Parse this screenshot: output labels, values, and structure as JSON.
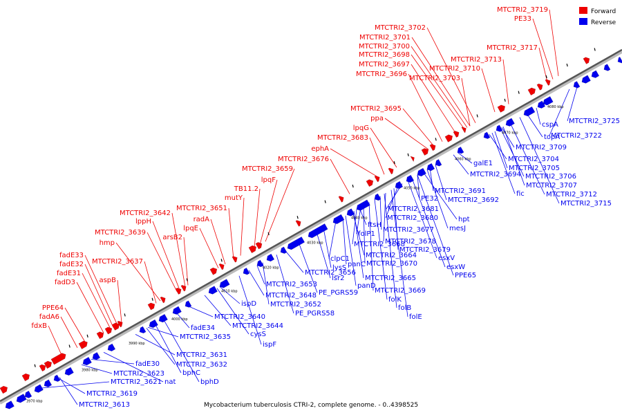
{
  "caption": "Mycobacterium tuberculosis CTRI-2, complete genome. - 0..4398525",
  "legend": [
    {
      "label": "Forward",
      "color": "#ee0000"
    },
    {
      "label": "Reverse",
      "color": "#0000ee"
    }
  ],
  "ticks": [
    "3970 kbp",
    "3980 kbp",
    "3990 kbp",
    "4000 kbp",
    "4010 kbp",
    "4020 kbp",
    "4030 kbp",
    "4040 kbp",
    "4050 kbp",
    "4060 kbp",
    "4070 kbp",
    "4080 kbp"
  ],
  "forward_labels": [
    "fdxB",
    "fadA6",
    "PPE64",
    "fadD3",
    "fadE31",
    "fadE32",
    "fadE33",
    "aspB",
    "MTCTRI2_3637",
    "hmp",
    "MTCTRI2_3639",
    "lppH",
    "MTCTRI2_3642",
    "arsB2",
    "lpqE",
    "radA",
    "MTCTRI2_3651",
    "mutY",
    "TB11.2",
    "lpqF",
    "MTCTRI2_3659",
    "MTCTRI2_3676",
    "ephA",
    "MTCTRI2_3683",
    "lpqG",
    "ppa",
    "MTCTRI2_3695",
    "MTCTRI2_3696",
    "MTCTRI2_3697",
    "MTCTRI2_3698",
    "MTCTRI2_3700",
    "MTCTRI2_3701",
    "MTCTRI2_3702",
    "MTCTRI2_3703",
    "MTCTRI2_3710",
    "MTCTRI2_3713",
    "MTCTRI2_3717",
    "PE33",
    "MTCTRI2_3719"
  ],
  "reverse_labels": [
    "MTCTRI2_3613",
    "MTCTRI2_3619",
    "MTCTRI2_3621",
    "MTCTRI2_3623",
    "fadE30",
    "nat",
    "MTCTRI2_3631",
    "MTCTRI2_3632",
    "bphC",
    "bphD",
    "MTCTRI2_3635",
    "fadE34",
    "MTCTRI2_3640",
    "MTCTRI2_3644",
    "cysS",
    "ispF",
    "ispD",
    "MTCTRI2_3648",
    "MTCTRI2_3652",
    "PE_PGRS58",
    "MTCTRI2_3653",
    "MTCTRI2_3656",
    "PE_PGRS59",
    "lsr2",
    "lysS",
    "clpC1",
    "panC",
    "panD",
    "MTCTRI2_3664",
    "MTCTRI2_3665",
    "MTCTRI2_3668",
    "folP1",
    "MTCTRI2_3670",
    "MTCTRI2_3669",
    "folK",
    "folB",
    "folE",
    "ftsH",
    "MTCTRI2_3677",
    "MTCTRI2_3678",
    "MTCTRI2_3679",
    "MTCTRI2_3680",
    "MTCTRI2_3681",
    "esxV",
    "esxW",
    "PPE65",
    "hpt",
    "mesJ",
    "PE32",
    "MTCTRI2_3691",
    "MTCTRI2_3692",
    "MTCTRI2_3694",
    "galE1",
    "MTCTRI2_3704",
    "MTCTRI2_3705",
    "MTCTRI2_3706",
    "MTCTRI2_3707",
    "fic",
    "MTCTRI2_3712",
    "MTCTRI2_3715",
    "MTCTRI2_3709",
    "topA",
    "cspA",
    "MTCTRI2_3722",
    "MTCTRI2_3725"
  ]
}
